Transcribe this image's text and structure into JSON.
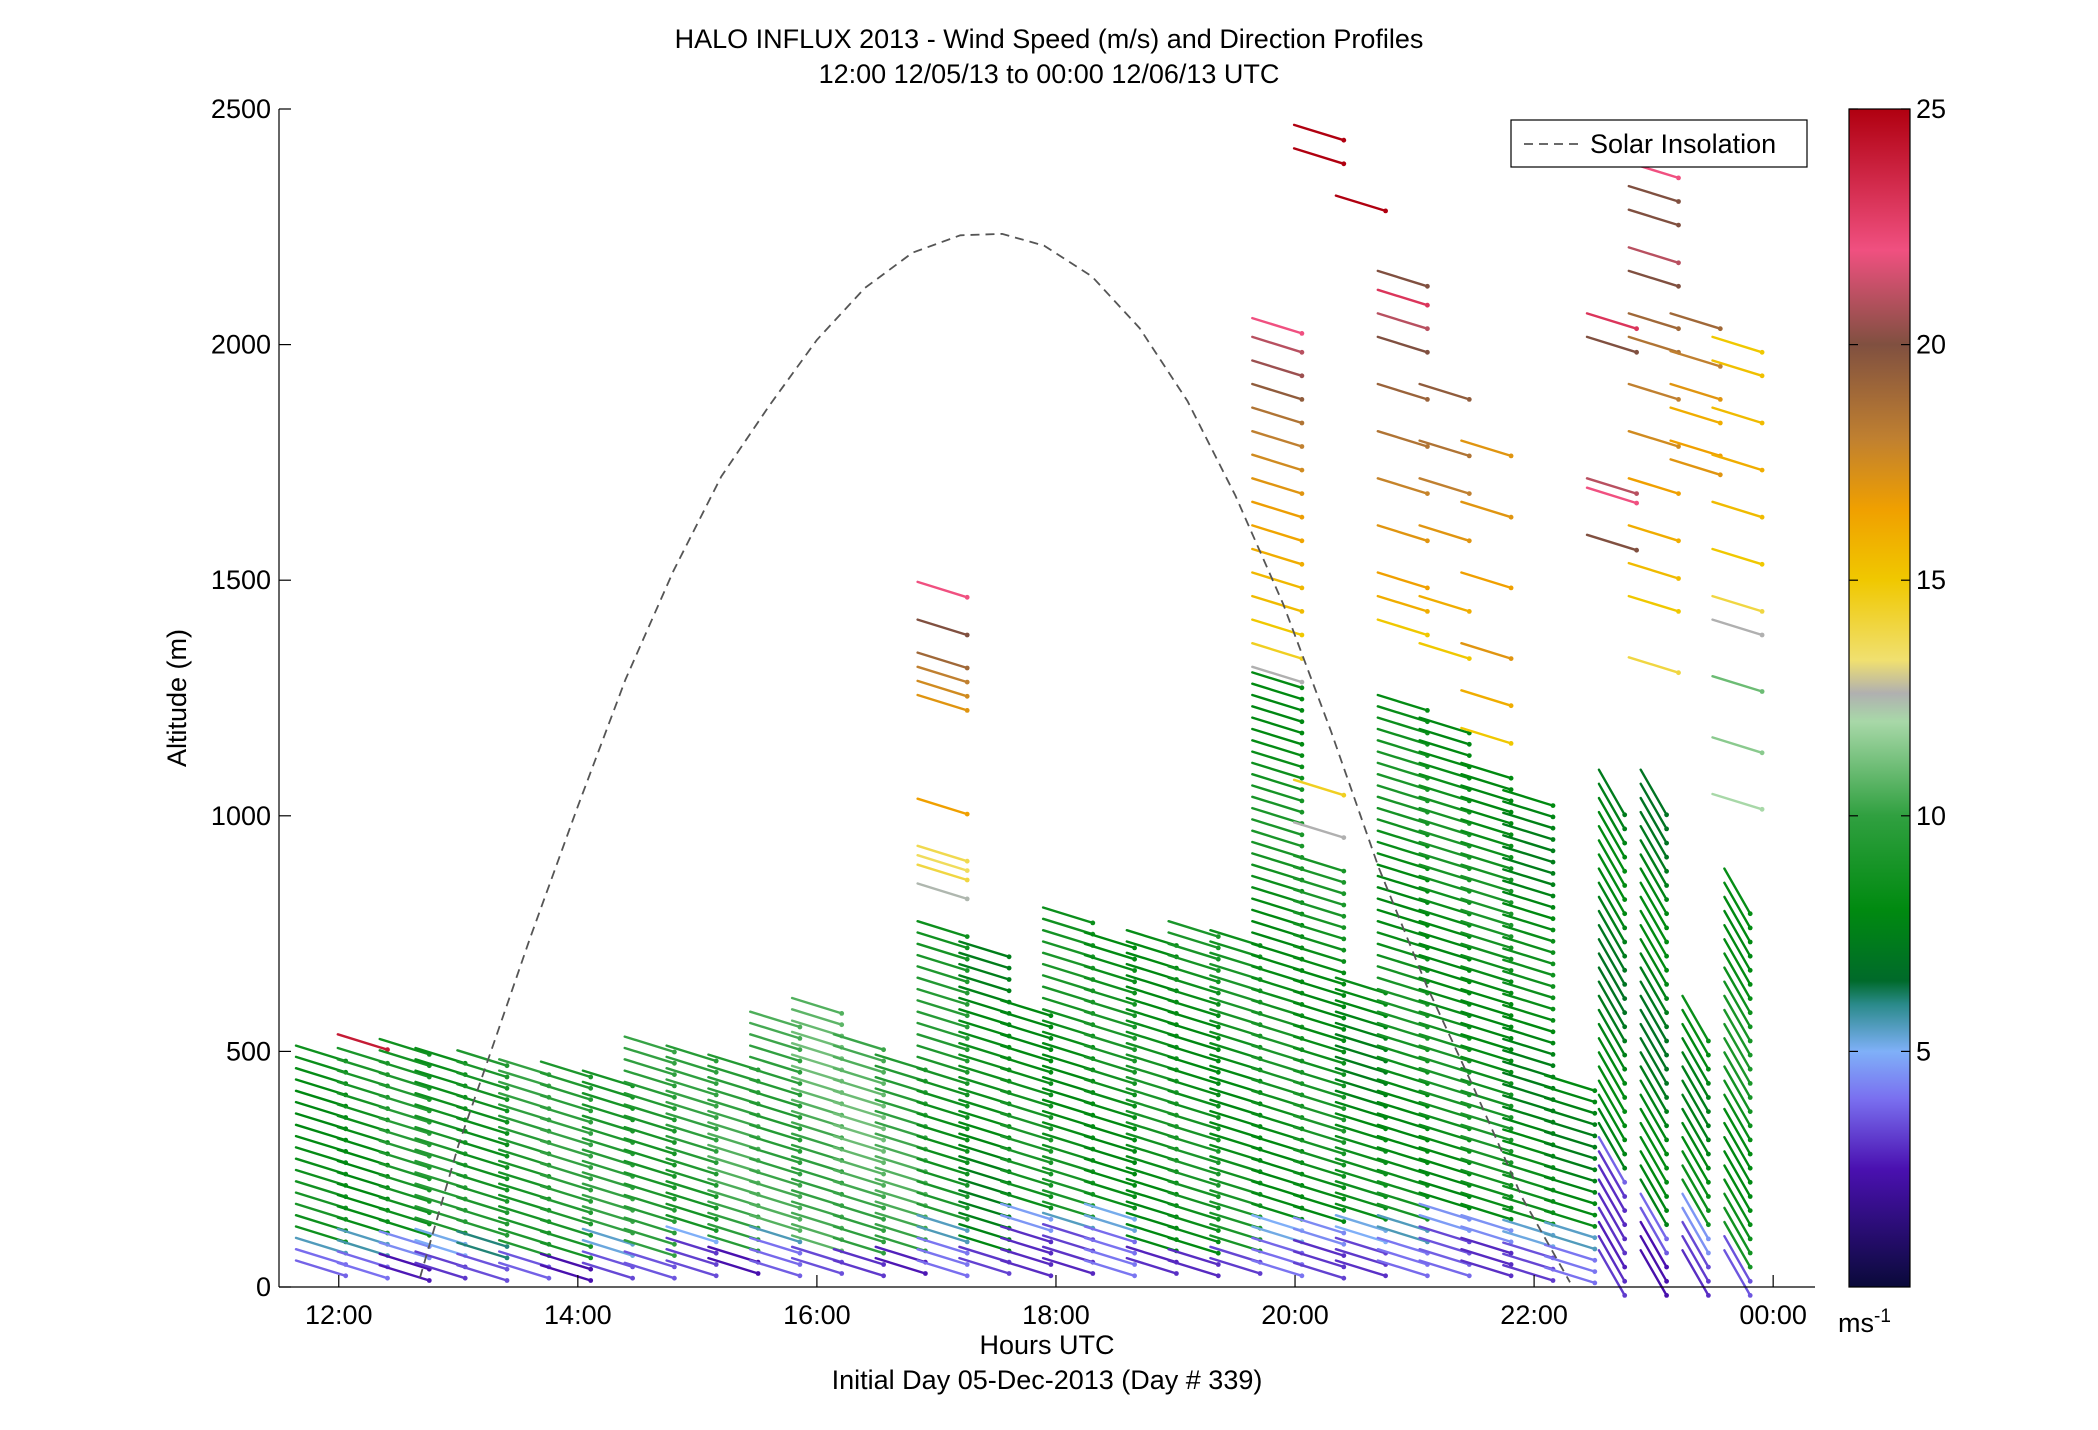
{
  "chart_data": {
    "type": "scatter",
    "title": "HALO INFLUX 2013 - Wind Speed (m/s) and Direction Profiles",
    "subtitle": "12:00 12/05/13 to 00:00 12/06/13  UTC",
    "xlabel": "Hours UTC",
    "xlabel2": "Initial Day 05-Dec-2013 (Day # 339)",
    "ylabel": "Altitude (m)",
    "xlim": [
      11.5,
      24.35
    ],
    "ylim": [
      0,
      2500
    ],
    "x_ticks": [
      12,
      14,
      16,
      18,
      20,
      22,
      24
    ],
    "x_tick_labels": [
      "12:00",
      "14:00",
      "16:00",
      "18:00",
      "20:00",
      "22:00",
      "00:00"
    ],
    "y_ticks": [
      0,
      500,
      1000,
      1500,
      2000,
      2500
    ],
    "y_tick_labels": [
      "0",
      "500",
      "1000",
      "1500",
      "2000",
      "2500"
    ],
    "legend": {
      "position": "top-right",
      "entries": [
        {
          "label": "Solar Insolation",
          "style": "dashed",
          "color": "#808080"
        }
      ]
    },
    "colorbar": {
      "min": 0,
      "max": 25,
      "ticks": [
        5,
        10,
        15,
        20,
        25
      ],
      "tick_labels": [
        "5",
        "10",
        "15",
        "20",
        "25"
      ],
      "unit_base": "ms",
      "unit_exp": "-1",
      "stops": [
        {
          "v": 0,
          "c": "#0a0a3a"
        },
        {
          "v": 2.5,
          "c": "#4a10b0"
        },
        {
          "v": 4,
          "c": "#7a70f0"
        },
        {
          "v": 5,
          "c": "#7fb0f8"
        },
        {
          "v": 6,
          "c": "#2a8a8a"
        },
        {
          "v": 6.5,
          "c": "#006a2a"
        },
        {
          "v": 8,
          "c": "#008a10"
        },
        {
          "v": 10,
          "c": "#30a040"
        },
        {
          "v": 12,
          "c": "#a8d8a8"
        },
        {
          "v": 12.6,
          "c": "#b0b0b0"
        },
        {
          "v": 13.3,
          "c": "#f0e070"
        },
        {
          "v": 15,
          "c": "#f0c800"
        },
        {
          "v": 16.5,
          "c": "#f0a000"
        },
        {
          "v": 18,
          "c": "#c08030"
        },
        {
          "v": 20,
          "c": "#805040"
        },
        {
          "v": 22,
          "c": "#f05080"
        },
        {
          "v": 25,
          "c": "#b00010"
        }
      ]
    },
    "solar_insolation": {
      "style": "dashed",
      "color": "#808080",
      "x": [
        12.68,
        13.0,
        13.3,
        13.6,
        14.0,
        14.4,
        14.8,
        15.2,
        15.6,
        16.0,
        16.4,
        16.8,
        17.2,
        17.55,
        17.9,
        18.3,
        18.7,
        19.1,
        19.5,
        19.9,
        20.3,
        20.7,
        21.1,
        21.5,
        21.9,
        22.3
      ],
      "y": [
        20,
        300,
        520,
        740,
        1020,
        1290,
        1520,
        1720,
        1870,
        2010,
        2120,
        2195,
        2232,
        2235,
        2210,
        2145,
        2035,
        1880,
        1680,
        1450,
        1180,
        890,
        640,
        420,
        190,
        10
      ]
    },
    "profiles": [
      {
        "t": 11.85,
        "z0": 40,
        "z1": 500,
        "dz": 24,
        "dir": "ese",
        "low": [
          [
            40,
            3.5
          ],
          [
            70,
            5
          ],
          [
            110,
            8
          ]
        ],
        "main": 8.5
      },
      {
        "t": 12.2,
        "z0": 35,
        "z1": 510,
        "dz": 24,
        "dir": "ese",
        "low": [
          [
            35,
            3.5
          ],
          [
            80,
            5.5
          ]
        ],
        "main": 8.5,
        "top": [
          [
            520,
            24
          ]
        ]
      },
      {
        "t": 12.55,
        "z0": 30,
        "z1": 520,
        "dz": 24,
        "dir": "ese",
        "low": [
          [
            30,
            3
          ],
          [
            75,
            5
          ]
        ],
        "main": 9
      },
      {
        "t": 12.85,
        "z0": 35,
        "z1": 500,
        "dz": 24,
        "dir": "ese",
        "low": [
          [
            35,
            3.5
          ],
          [
            80,
            5
          ]
        ],
        "main": 9
      },
      {
        "t": 13.2,
        "z0": 30,
        "z1": 505,
        "dz": 24,
        "dir": "ese",
        "low": [
          [
            30,
            3
          ],
          [
            70,
            5.5
          ]
        ],
        "main": 9
      },
      {
        "t": 13.55,
        "z0": 35,
        "z1": 480,
        "dz": 24,
        "dir": "ese",
        "low": [
          [
            35,
            3.5
          ]
        ],
        "main": 9.5
      },
      {
        "t": 13.9,
        "z0": 30,
        "z1": 470,
        "dz": 24,
        "dir": "ese",
        "low": [
          [
            30,
            3
          ]
        ],
        "main": 9.5
      },
      {
        "t": 14.25,
        "z0": 35,
        "z1": 450,
        "dz": 24,
        "dir": "ese",
        "low": [
          [
            35,
            3.5
          ],
          [
            80,
            5
          ]
        ],
        "main": 9.5
      },
      {
        "t": 14.6,
        "z0": 35,
        "z1": 530,
        "dz": 24,
        "dir": "ese",
        "low": [
          [
            35,
            3
          ]
        ],
        "main": 9.5
      },
      {
        "t": 14.95,
        "z0": 40,
        "z1": 500,
        "dz": 24,
        "dir": "ese",
        "low": [
          [
            40,
            3.5
          ],
          [
            90,
            5.5
          ]
        ],
        "main": 9.5
      },
      {
        "t": 15.3,
        "z0": 45,
        "z1": 480,
        "dz": 24,
        "dir": "ese",
        "low": [
          [
            45,
            3
          ]
        ],
        "main": 10
      },
      {
        "t": 15.65,
        "z0": 40,
        "z1": 580,
        "dz": 24,
        "dir": "ese",
        "low": [
          [
            40,
            3.5
          ],
          [
            90,
            5
          ]
        ],
        "main": 10
      },
      {
        "t": 16.0,
        "z0": 45,
        "z1": 600,
        "dz": 24,
        "dir": "ese",
        "low": [
          [
            45,
            3
          ]
        ],
        "main": 10.5
      },
      {
        "t": 16.35,
        "z0": 40,
        "z1": 520,
        "dz": 24,
        "dir": "ese",
        "low": [
          [
            40,
            3.5
          ]
        ],
        "main": 10.5
      },
      {
        "t": 16.7,
        "z0": 45,
        "z1": 500,
        "dz": 24,
        "dir": "ese",
        "low": [
          [
            45,
            3
          ]
        ],
        "main": 10
      },
      {
        "t": 17.05,
        "z0": 40,
        "z1": 760,
        "dz": 24,
        "dir": "ese",
        "low": [
          [
            40,
            3.5
          ],
          [
            100,
            5
          ]
        ],
        "main": 9,
        "top": [
          [
            840,
            12.5
          ],
          [
            880,
            14
          ],
          [
            900,
            13.6
          ],
          [
            920,
            13.8
          ],
          [
            1020,
            16.5
          ],
          [
            1240,
            17
          ],
          [
            1270,
            17.5
          ],
          [
            1300,
            18
          ],
          [
            1330,
            19
          ],
          [
            1400,
            20
          ],
          [
            1480,
            22
          ]
        ]
      },
      {
        "t": 17.4,
        "z0": 45,
        "z1": 720,
        "dz": 24,
        "dir": "ese",
        "low": [
          [
            45,
            3
          ]
        ],
        "main": 8
      },
      {
        "t": 17.75,
        "z0": 40,
        "z1": 600,
        "dz": 24,
        "dir": "ese",
        "low": [
          [
            40,
            3.5
          ],
          [
            130,
            5
          ]
        ],
        "main": 8.5
      },
      {
        "t": 18.1,
        "z0": 45,
        "z1": 790,
        "dz": 24,
        "dir": "ese",
        "low": [
          [
            45,
            3
          ],
          [
            120,
            5
          ]
        ],
        "main": 8.5
      },
      {
        "t": 18.45,
        "z0": 40,
        "z1": 740,
        "dz": 24,
        "dir": "ese",
        "low": [
          [
            40,
            3.5
          ],
          [
            130,
            5
          ]
        ],
        "main": 8.5
      },
      {
        "t": 18.8,
        "z0": 45,
        "z1": 760,
        "dz": 24,
        "dir": "ese",
        "low": [
          [
            45,
            3
          ]
        ],
        "main": 8.5
      },
      {
        "t": 19.15,
        "z0": 40,
        "z1": 780,
        "dz": 24,
        "dir": "ese",
        "low": [
          [
            40,
            3.5
          ]
        ],
        "main": 8.5
      },
      {
        "t": 19.5,
        "z0": 45,
        "z1": 760,
        "dz": 24,
        "dir": "ese",
        "low": [
          [
            45,
            3
          ]
        ],
        "main": 8.5
      },
      {
        "t": 19.85,
        "z0": 40,
        "z1": 1300,
        "dz": 24,
        "dir": "ese",
        "low": [
          [
            40,
            3.5
          ],
          [
            110,
            5
          ]
        ],
        "main": 8.5,
        "top": [
          [
            1300,
            12.6
          ],
          [
            1350,
            14.5
          ],
          [
            1400,
            15
          ],
          [
            1450,
            15.5
          ],
          [
            1500,
            15.6
          ],
          [
            1550,
            16
          ],
          [
            1600,
            16.3
          ],
          [
            1650,
            16.6
          ],
          [
            1700,
            17
          ],
          [
            1750,
            17.5
          ],
          [
            1800,
            18
          ],
          [
            1850,
            18.5
          ],
          [
            1900,
            19.5
          ],
          [
            1950,
            20.5
          ],
          [
            2000,
            21
          ],
          [
            2040,
            22
          ]
        ]
      },
      {
        "t": 20.2,
        "z0": 35,
        "z1": 900,
        "dz": 24,
        "dir": "ese",
        "low": [
          [
            35,
            3.5
          ],
          [
            90,
            5
          ]
        ],
        "main": 8.5,
        "top": [
          [
            970,
            12.6
          ],
          [
            1060,
            14.5
          ],
          [
            2400,
            25
          ],
          [
            2450,
            25
          ]
        ]
      },
      {
        "t": 20.55,
        "z0": 40,
        "z1": 650,
        "dz": 24,
        "dir": "ese",
        "low": [
          [
            40,
            3.5
          ],
          [
            100,
            5
          ]
        ],
        "main": 8,
        "top": [
          [
            2300,
            25
          ]
        ]
      },
      {
        "t": 20.9,
        "z0": 40,
        "z1": 1250,
        "dz": 24,
        "dir": "ese",
        "low": [
          [
            40,
            3.5
          ],
          [
            110,
            5
          ]
        ],
        "main": 8.5,
        "top": [
          [
            1400,
            15
          ],
          [
            1450,
            16
          ],
          [
            1500,
            16.5
          ],
          [
            1600,
            17
          ],
          [
            1700,
            17.8
          ],
          [
            1800,
            18.5
          ],
          [
            1900,
            19.2
          ],
          [
            2000,
            20
          ],
          [
            2050,
            21
          ],
          [
            2100,
            23
          ],
          [
            2140,
            20
          ]
        ]
      },
      {
        "t": 21.25,
        "z0": 40,
        "z1": 1200,
        "dz": 24,
        "dir": "ese",
        "low": [
          [
            40,
            3.5
          ],
          [
            120,
            5
          ]
        ],
        "main": 8.5,
        "top": [
          [
            1350,
            15
          ],
          [
            1450,
            16
          ],
          [
            1600,
            17
          ],
          [
            1700,
            18
          ],
          [
            1780,
            18.5
          ],
          [
            1900,
            19.5
          ]
        ]
      },
      {
        "t": 21.6,
        "z0": 40,
        "z1": 1100,
        "dz": 24,
        "dir": "ese",
        "low": [
          [
            40,
            3.5
          ],
          [
            110,
            5
          ]
        ],
        "main": 8.5,
        "top": [
          [
            1170,
            15
          ],
          [
            1250,
            16
          ],
          [
            1350,
            17
          ],
          [
            1500,
            16.5
          ],
          [
            1650,
            17
          ],
          [
            1780,
            17
          ]
        ]
      },
      {
        "t": 21.95,
        "z0": 30,
        "z1": 1060,
        "dz": 24,
        "dir": "ese",
        "low": [
          [
            30,
            3.5
          ],
          [
            100,
            5
          ]
        ],
        "main": 8
      },
      {
        "t": 22.3,
        "z0": 25,
        "z1": 440,
        "dz": 24,
        "dir": "ese",
        "low": [
          [
            25,
            3.5
          ],
          [
            90,
            5
          ]
        ],
        "main": 8
      },
      {
        "t": 22.65,
        "z0": 30,
        "z1": 1060,
        "dz": 30,
        "dir": "s",
        "low": [
          [
            30,
            3
          ],
          [
            100,
            3.5
          ],
          [
            250,
            4
          ]
        ],
        "main": 7.5,
        "top": [
          [
            1580,
            20
          ],
          [
            1680,
            22
          ],
          [
            1700,
            21
          ],
          [
            2000,
            20
          ],
          [
            2050,
            23
          ]
        ]
      },
      {
        "t": 23.0,
        "z0": 30,
        "z1": 1060,
        "dz": 30,
        "dir": "s",
        "low": [
          [
            30,
            3
          ],
          [
            120,
            4
          ]
        ],
        "main": 7.5,
        "top": [
          [
            1320,
            14
          ],
          [
            1450,
            15
          ],
          [
            1520,
            15.5
          ],
          [
            1600,
            16
          ],
          [
            1700,
            16.5
          ],
          [
            1800,
            17.5
          ],
          [
            1900,
            18
          ],
          [
            2000,
            18.5
          ],
          [
            2050,
            19
          ],
          [
            2140,
            20
          ],
          [
            2190,
            21
          ],
          [
            2270,
            20
          ],
          [
            2320,
            20
          ],
          [
            2370,
            22
          ]
        ]
      },
      {
        "t": 23.35,
        "z0": 30,
        "z1": 580,
        "dz": 30,
        "dir": "s",
        "low": [
          [
            30,
            3
          ],
          [
            110,
            4
          ]
        ],
        "main": 8,
        "top": [
          [
            1740,
            17
          ],
          [
            1780,
            16.5
          ],
          [
            1850,
            16
          ],
          [
            1900,
            17
          ],
          [
            1970,
            18
          ],
          [
            2050,
            19
          ]
        ]
      },
      {
        "t": 23.7,
        "z0": 30,
        "z1": 840,
        "dz": 30,
        "dir": "s",
        "low": [
          [
            30,
            3
          ]
        ],
        "main": 8.5,
        "top": [
          [
            1030,
            12
          ],
          [
            1150,
            11.5
          ],
          [
            1280,
            11
          ],
          [
            1400,
            12.6
          ],
          [
            1450,
            14
          ],
          [
            1550,
            15
          ],
          [
            1650,
            15.5
          ],
          [
            1750,
            16
          ],
          [
            1850,
            15.5
          ],
          [
            1950,
            15.3
          ],
          [
            2000,
            15
          ]
        ]
      }
    ]
  }
}
